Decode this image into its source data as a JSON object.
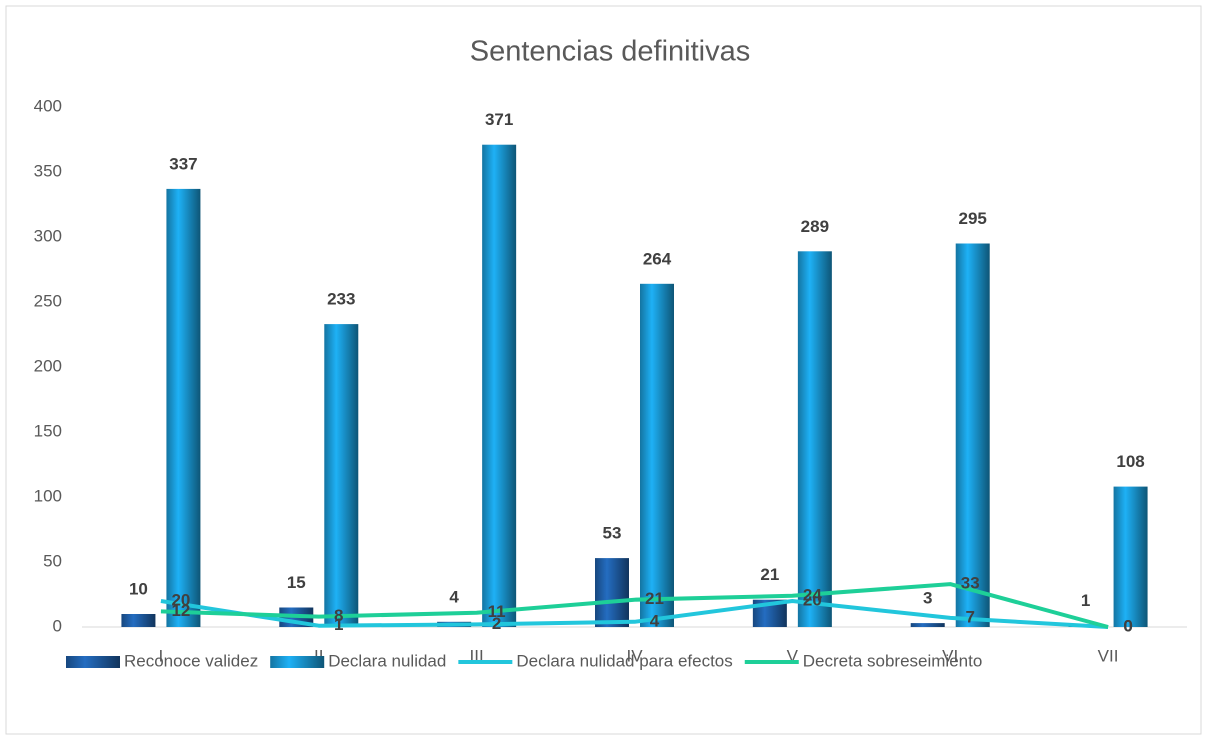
{
  "chart_data": {
    "type": "bar",
    "title": "Sentencias definitivas",
    "categories": [
      "I",
      "II",
      "III",
      "IV",
      "V",
      "VI",
      "VII"
    ],
    "ylim": [
      0,
      400
    ],
    "yticks": [
      0,
      50,
      100,
      150,
      200,
      250,
      300,
      350,
      400
    ],
    "grid": false,
    "legend": "bottom",
    "series": [
      {
        "name": "Reconoce validez",
        "type": "bar",
        "color": "#1f5fa8",
        "values": [
          10,
          15,
          4,
          53,
          21,
          3,
          1
        ]
      },
      {
        "name": "Declara nulidad",
        "type": "bar",
        "color": "#1a9ad6",
        "values": [
          337,
          233,
          371,
          264,
          289,
          295,
          108
        ]
      },
      {
        "name": "Declara nulidad para efectos",
        "type": "line",
        "color": "#22c6dc",
        "values": [
          20,
          1,
          2,
          4,
          20,
          7,
          0
        ]
      },
      {
        "name": "Decreta sobreseimiento",
        "type": "line",
        "color": "#1ecf98",
        "values": [
          12,
          8,
          11,
          21,
          24,
          33,
          0
        ]
      }
    ]
  }
}
